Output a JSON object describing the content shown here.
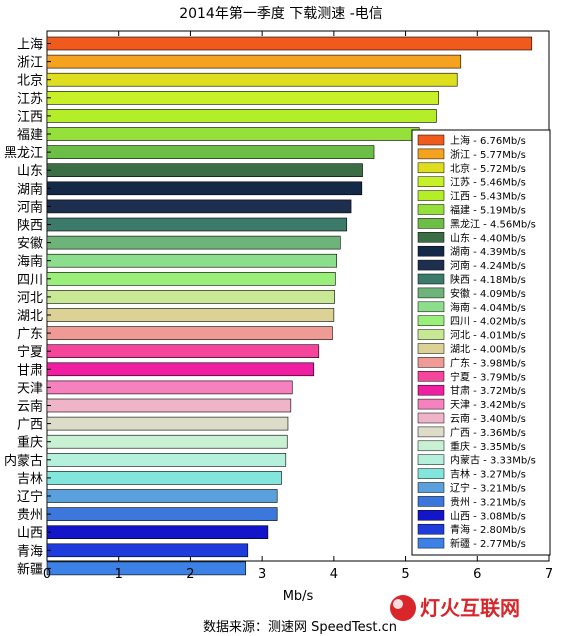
{
  "chart_data": {
    "type": "bar",
    "orientation": "horizontal",
    "title": "2014年第一季度 下载测速 -电信",
    "xlabel": "Mb/s",
    "ylabel": "",
    "xlim": [
      0,
      7
    ],
    "x_ticks": [
      "0",
      "1",
      "2",
      "3",
      "4",
      "5",
      "6",
      "7"
    ],
    "grid": false,
    "legend_position": "right",
    "categories": [
      "上海",
      "浙江",
      "北京",
      "江苏",
      "江西",
      "福建",
      "黑龙江",
      "山东",
      "湖南",
      "河南",
      "陕西",
      "安徽",
      "海南",
      "四川",
      "河北",
      "湖北",
      "广东",
      "宁夏",
      "甘肃",
      "天津",
      "云南",
      "广西",
      "重庆",
      "内蒙古",
      "吉林",
      "辽宁",
      "贵州",
      "山西",
      "青海",
      "新疆"
    ],
    "values": [
      6.76,
      5.77,
      5.72,
      5.46,
      5.43,
      5.19,
      4.56,
      4.4,
      4.39,
      4.24,
      4.18,
      4.09,
      4.04,
      4.02,
      4.01,
      4.0,
      3.98,
      3.79,
      3.72,
      3.42,
      3.4,
      3.36,
      3.35,
      3.33,
      3.27,
      3.21,
      3.21,
      3.08,
      2.8,
      2.77
    ],
    "legend_labels": [
      "上海 - 6.76Mb/s",
      "浙江 - 5.77Mb/s",
      "北京 - 5.72Mb/s",
      "江苏 - 5.46Mb/s",
      "江西 - 5.43Mb/s",
      "福建 - 5.19Mb/s",
      "黑龙江 - 4.56Mb/s",
      "山东 - 4.40Mb/s",
      "湖南 - 4.39Mb/s",
      "河南 - 4.24Mb/s",
      "陕西 - 4.18Mb/s",
      "安徽 - 4.09Mb/s",
      "海南 - 4.04Mb/s",
      "四川 - 4.02Mb/s",
      "河北 - 4.01Mb/s",
      "湖北 - 4.00Mb/s",
      "广东 - 3.98Mb/s",
      "宁夏 - 3.79Mb/s",
      "甘肃 - 3.72Mb/s",
      "天津 - 3.42Mb/s",
      "云南 - 3.40Mb/s",
      "广西 - 3.36Mb/s",
      "重庆 - 3.35Mb/s",
      "内蒙古 - 3.33Mb/s",
      "吉林 - 3.27Mb/s",
      "辽宁 - 3.21Mb/s",
      "贵州 - 3.21Mb/s",
      "山西 - 3.08Mb/s",
      "青海 - 2.80Mb/s",
      "新疆 - 2.77Mb/s"
    ],
    "colors": [
      "#f05a1c",
      "#f5a21e",
      "#dede1e",
      "#c8f028",
      "#b4ee28",
      "#96e03c",
      "#6cbe46",
      "#3c6e46",
      "#142848",
      "#1e2e4e",
      "#3c7a6a",
      "#6eb47a",
      "#8cde8c",
      "#9aee7a",
      "#c8e896",
      "#dcd296",
      "#f09a96",
      "#f5469c",
      "#f01ea0",
      "#f582be",
      "#f0b4c8",
      "#dcdcc8",
      "#c8f0d2",
      "#b4f0dc",
      "#82e6dc",
      "#5aa0dc",
      "#3c78dc",
      "#1414c8",
      "#1e3cdc",
      "#3c82e6"
    ]
  },
  "source_text": "数据来源：测速网 SpeedTest.cn",
  "watermark_text": "灯火互联网"
}
